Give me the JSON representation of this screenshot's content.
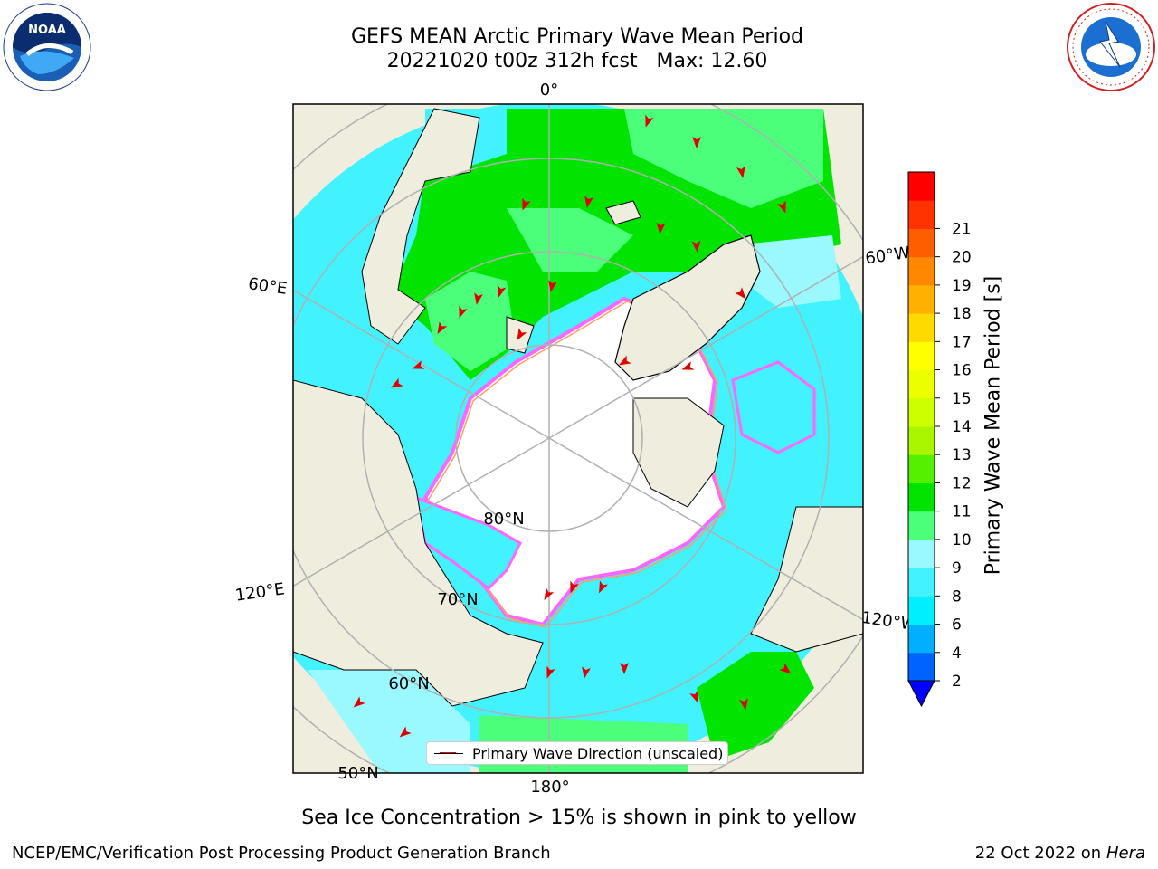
{
  "header": {
    "title_line1": "GEFS MEAN Arctic Primary Wave Mean Period",
    "title_line2": "20221020 t00z 312h fcst   Max: 12.60"
  },
  "map": {
    "projection": "north-polar-stereographic",
    "meridian_labels": [
      "0°",
      "60°E",
      "120°E",
      "180°",
      "120°W",
      "60°W"
    ],
    "parallel_labels": [
      "80°N",
      "70°N",
      "60°N",
      "50°N"
    ],
    "land_color": "#efeddd",
    "ocean_no_data_color": "#ffffff",
    "sea_ice_edge_colors": [
      "#ff66ff",
      "#ff77c8",
      "#ffa060",
      "#ffe066"
    ]
  },
  "legend": {
    "label": "Primary Wave Direction (unscaled)",
    "arrow_color": "#e00000"
  },
  "colorbar": {
    "label": "Primary Wave Mean Period [s]",
    "ticks": [
      "2",
      "4",
      "6",
      "8",
      "9",
      "10",
      "11",
      "12",
      "13",
      "14",
      "15",
      "16",
      "17",
      "18",
      "19",
      "20",
      "21"
    ],
    "colors": [
      "#0062ff",
      "#00b0ff",
      "#00efff",
      "#42f2ff",
      "#9af8ff",
      "#4cff7a",
      "#00e400",
      "#55f000",
      "#aaf500",
      "#ccff00",
      "#ebff00",
      "#ffff00",
      "#ffda00",
      "#ffb000",
      "#ff8800",
      "#ff5e00",
      "#ff3200",
      "#ff0000"
    ],
    "under_color": "#0000ff"
  },
  "note": "Sea Ice Concentration > 15% is shown in pink to yellow",
  "footer": {
    "left": "NCEP/EMC/Verification Post Processing Product Generation Branch",
    "right_date": "22 Oct 2022 on",
    "right_machine": "Hera"
  },
  "logos": {
    "noaa_text": "NOAA",
    "nws_ring_text": "NATIONAL WEATHER SERVICE"
  }
}
